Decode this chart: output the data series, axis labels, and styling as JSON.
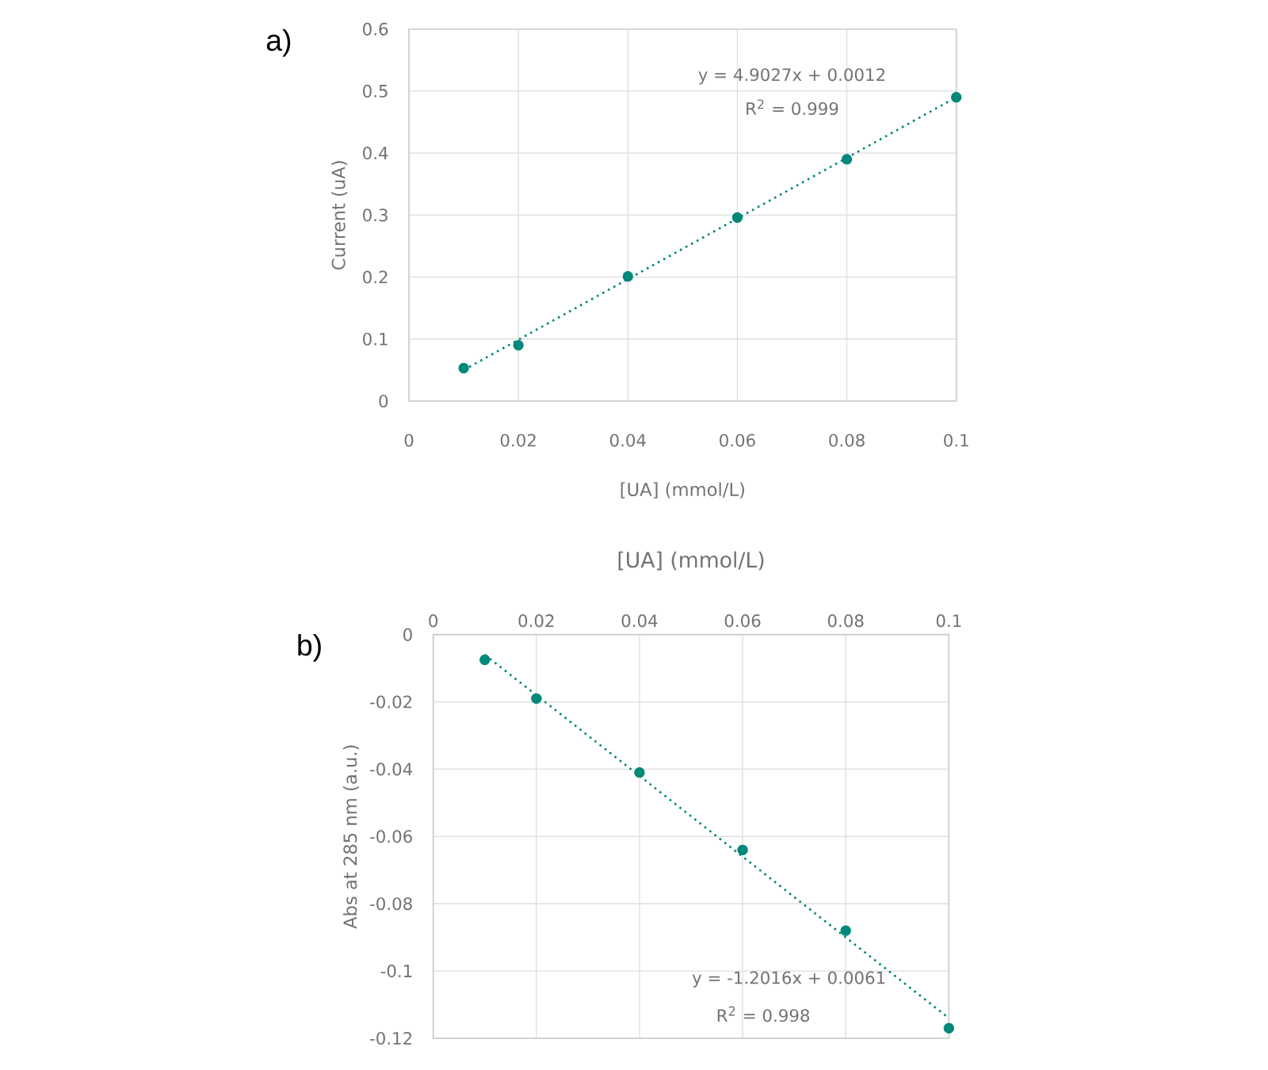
{
  "chart_data": [
    {
      "type": "scatter",
      "xlabel": "[UA] (mmol/L)",
      "ylabel": "Current (uA)",
      "xlim": [
        0,
        0.1
      ],
      "ylim": [
        0,
        0.6
      ],
      "xticks": [
        0,
        0.02,
        0.04,
        0.06,
        0.08,
        0.1
      ],
      "yticks": [
        0,
        0.1,
        0.2,
        0.3,
        0.4,
        0.5,
        0.6
      ],
      "grid": true,
      "annotations": [
        "a)",
        "y = 4.9027x + 0.0012",
        "R$^{2}$ = 0.999"
      ],
      "series": [
        {
          "type": "scatter",
          "color": "#00897b",
          "marker": "circle",
          "x": [
            0.01,
            0.02,
            0.04,
            0.06,
            0.08,
            0.1
          ],
          "values": [
            0.053,
            0.09,
            0.201,
            0.296,
            0.39,
            0.49
          ]
        },
        {
          "type": "line",
          "color": "#00897b",
          "marker": "none",
          "line_style": "dotted",
          "x": [
            0.01,
            0.1
          ],
          "values": [
            0.05,
            0.49
          ]
        }
      ]
    },
    {
      "type": "scatter",
      "xlabel": "[UA] (mmol/L)",
      "ylabel": "Abs at 285 nm (a.u.)",
      "xlim": [
        0,
        0.1
      ],
      "ylim": [
        -0.12,
        0
      ],
      "xticks": [
        0,
        0.02,
        0.04,
        0.06,
        0.08,
        0.1
      ],
      "yticks": [
        -0.12,
        -0.1,
        -0.08,
        -0.06,
        -0.04,
        -0.02,
        0
      ],
      "grid": true,
      "annotations": [
        "b)",
        "y = -1.2016x + 0.0061",
        "R$^{2}$ = 0.998"
      ],
      "series": [
        {
          "type": "scatter",
          "color": "#00897b",
          "marker": "circle",
          "x": [
            0.01,
            0.02,
            0.04,
            0.06,
            0.08,
            0.1
          ],
          "values": [
            -0.0075,
            -0.019,
            -0.041,
            -0.064,
            -0.088,
            -0.117
          ]
        },
        {
          "type": "line",
          "color": "#00897b",
          "marker": "none",
          "line_style": "dotted",
          "x": [
            0.01,
            0.1
          ],
          "values": [
            -0.006,
            -0.114
          ]
        }
      ]
    }
  ]
}
